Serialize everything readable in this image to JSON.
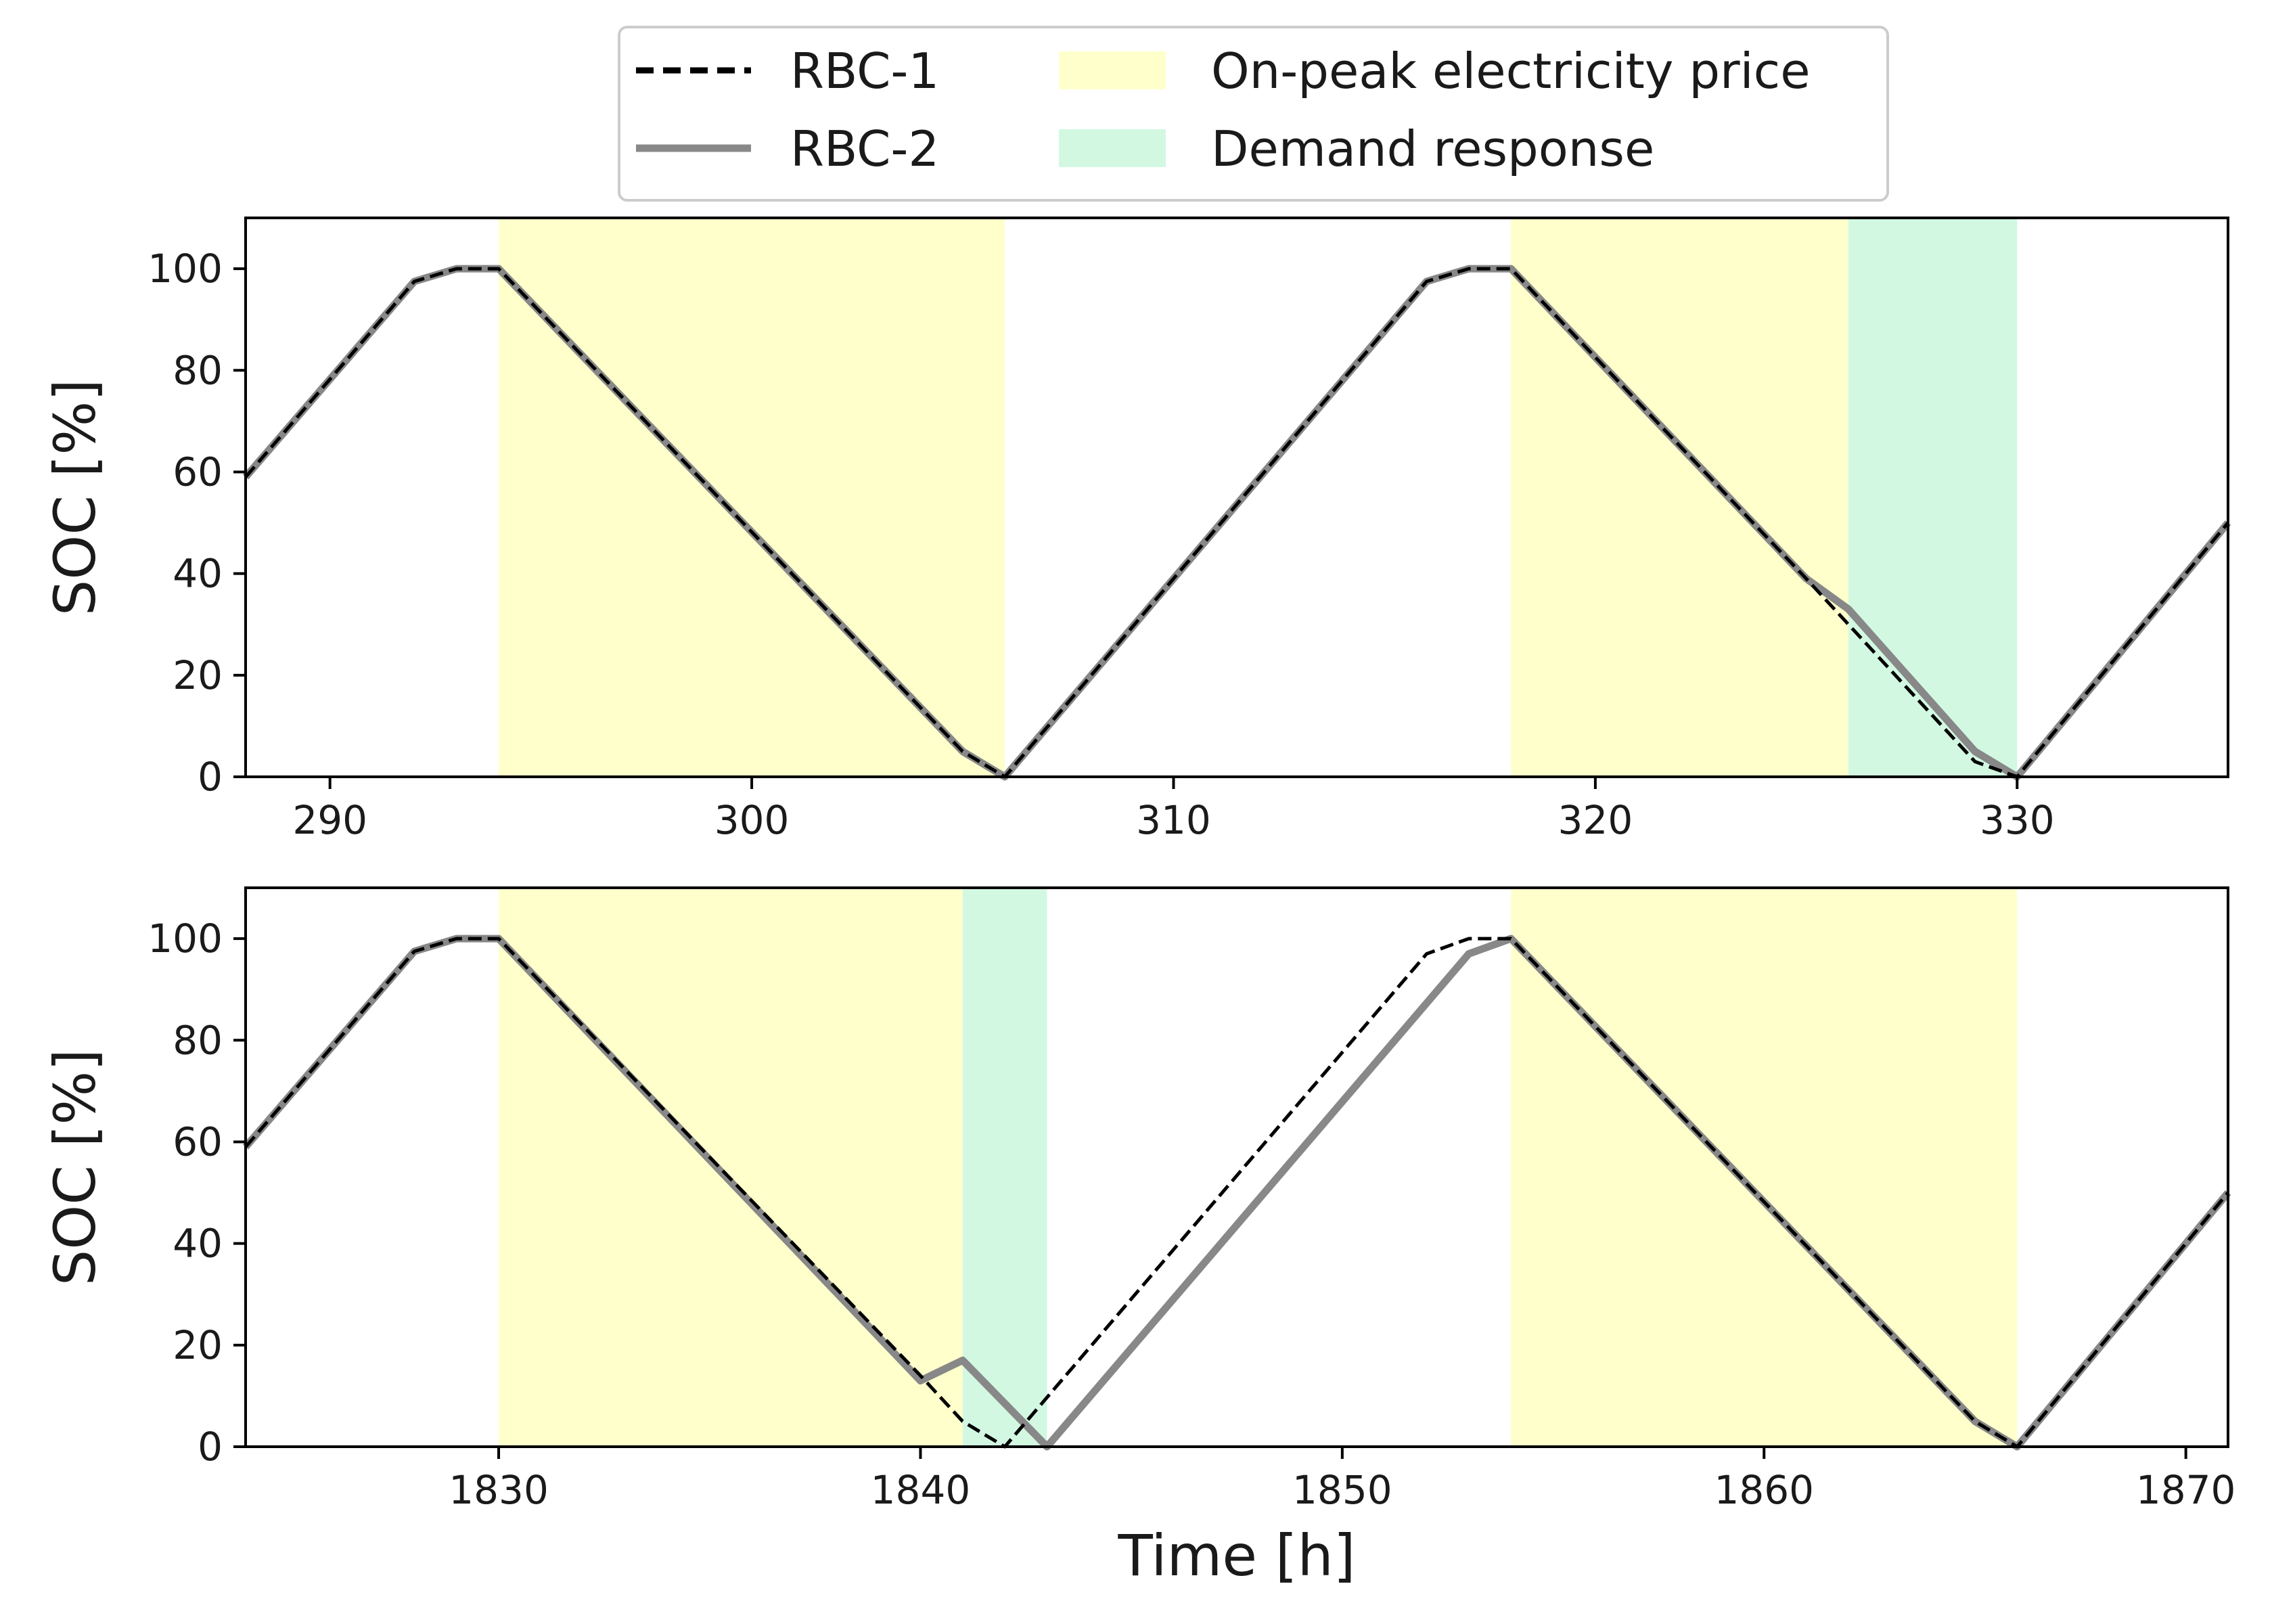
{
  "legend": {
    "items": [
      {
        "label": "RBC-1",
        "kind": "line",
        "style": "dashed",
        "color": "#000000"
      },
      {
        "label": "RBC-2",
        "kind": "line",
        "style": "solid",
        "color": "#888888"
      },
      {
        "label": "On-peak electricity price",
        "kind": "patch",
        "color": "#ffffcc"
      },
      {
        "label": "Demand response",
        "kind": "patch",
        "color": "#d2f8e2"
      }
    ]
  },
  "chart_data": [
    {
      "type": "line",
      "title": "",
      "xlabel": "",
      "ylabel": "SOC [%]",
      "xlim": [
        288,
        335
      ],
      "ylim": [
        0,
        110
      ],
      "xticks": [
        290,
        300,
        310,
        320,
        330
      ],
      "yticks": [
        0,
        20,
        40,
        60,
        80,
        100
      ],
      "shaded_regions": [
        {
          "kind": "On-peak electricity price",
          "x0": 294,
          "x1": 306,
          "color": "#ffffcc"
        },
        {
          "kind": "On-peak electricity price",
          "x0": 318,
          "x1": 326,
          "color": "#ffffcc"
        },
        {
          "kind": "Demand response",
          "x0": 326,
          "x1": 330,
          "color": "#d2f8e2"
        }
      ],
      "series": [
        {
          "name": "RBC-1",
          "style": "dashed",
          "color": "#000000",
          "x": [
            288,
            292,
            293,
            294,
            305,
            306,
            316,
            317,
            318,
            325,
            326,
            329,
            330,
            335
          ],
          "y": [
            59,
            97.5,
            100,
            100,
            5,
            0,
            97.5,
            100,
            100,
            39,
            30,
            3,
            0,
            50
          ]
        },
        {
          "name": "RBC-2",
          "style": "solid",
          "color": "#888888",
          "x": [
            288,
            292,
            293,
            294,
            305,
            306,
            316,
            317,
            318,
            325,
            326,
            329,
            330,
            335
          ],
          "y": [
            59,
            97.5,
            100,
            100,
            5,
            0,
            97.5,
            100,
            100,
            39,
            33,
            5,
            0,
            50
          ]
        }
      ]
    },
    {
      "type": "line",
      "title": "",
      "xlabel": "Time [h]",
      "ylabel": "SOC [%]",
      "xlim": [
        1824,
        1871
      ],
      "ylim": [
        0,
        110
      ],
      "xticks": [
        1830,
        1840,
        1850,
        1860,
        1870
      ],
      "yticks": [
        0,
        20,
        40,
        60,
        80,
        100
      ],
      "shaded_regions": [
        {
          "kind": "On-peak electricity price",
          "x0": 1830,
          "x1": 1841,
          "color": "#ffffcc"
        },
        {
          "kind": "Demand response",
          "x0": 1841,
          "x1": 1843,
          "color": "#d2f8e2"
        },
        {
          "kind": "On-peak electricity price",
          "x0": 1854,
          "x1": 1866,
          "color": "#ffffcc"
        }
      ],
      "series": [
        {
          "name": "RBC-1",
          "style": "dashed",
          "color": "#000000",
          "x": [
            1824,
            1828,
            1829,
            1830,
            1840,
            1841,
            1842,
            1852,
            1853,
            1854,
            1865,
            1866,
            1871
          ],
          "y": [
            59,
            97.5,
            100,
            100,
            14,
            5,
            0,
            97,
            100,
            100,
            5,
            0,
            50
          ]
        },
        {
          "name": "RBC-2",
          "style": "solid",
          "color": "#888888",
          "x": [
            1824,
            1828,
            1829,
            1830,
            1840,
            1841,
            1843,
            1853,
            1854,
            1865,
            1866,
            1871
          ],
          "y": [
            59,
            97.5,
            100,
            100,
            13,
            17,
            0,
            97,
            100,
            5,
            0,
            50
          ]
        }
      ]
    }
  ]
}
